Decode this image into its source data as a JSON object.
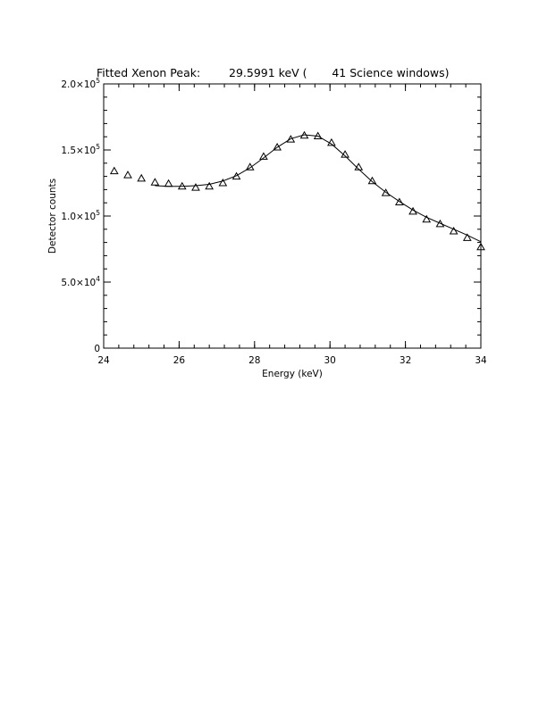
{
  "chart_data": {
    "type": "scatter",
    "title": "Fitted Xenon Peak:        29.5991 keV (       41 Science windows)",
    "xlabel": "Energy (keV)",
    "ylabel": "Detector counts",
    "xlim": [
      24,
      34
    ],
    "ylim": [
      0,
      200000
    ],
    "x_ticks": [
      24,
      26,
      28,
      30,
      32,
      34
    ],
    "x_tick_labels": [
      "24",
      "26",
      "28",
      "30",
      "32",
      "34"
    ],
    "y_ticks": [
      0,
      50000,
      100000,
      150000,
      200000
    ],
    "y_tick_labels": [
      {
        "mantissa": "0",
        "exp": ""
      },
      {
        "mantissa": "5.0×10",
        "exp": "4"
      },
      {
        "mantissa": "1.0×10",
        "exp": "5"
      },
      {
        "mantissa": "1.5×10",
        "exp": "5"
      },
      {
        "mantissa": "2.0×10",
        "exp": "5"
      }
    ],
    "grid": false,
    "series": [
      {
        "marker": "triangle",
        "x": [
          24.28,
          24.64,
          25.0,
          25.36,
          25.72,
          26.08,
          26.44,
          26.8,
          27.16,
          27.52,
          27.88,
          28.24,
          28.6,
          28.96,
          29.32,
          29.68,
          30.04,
          30.4,
          30.76,
          31.12,
          31.48,
          31.84,
          32.2,
          32.56,
          32.92,
          33.28,
          33.64,
          34.0
        ],
        "y": [
          134000,
          131000,
          128500,
          125500,
          124500,
          122500,
          121500,
          122500,
          125000,
          130000,
          137000,
          145000,
          152000,
          158000,
          161000,
          160500,
          155500,
          146500,
          137000,
          126500,
          117500,
          110500,
          103500,
          97500,
          94000,
          88500,
          83500,
          76500
        ]
      },
      {
        "style": "line",
        "x": [
          25.36,
          25.72,
          26.08,
          26.44,
          26.8,
          27.16,
          27.52,
          27.88,
          28.24,
          28.6,
          28.96,
          29.32,
          29.68,
          30.04,
          30.4,
          30.76,
          31.12,
          31.48,
          31.84,
          32.2,
          32.56,
          32.92,
          33.28,
          33.64,
          34.0
        ],
        "y": [
          123000,
          122500,
          122500,
          123000,
          124000,
          126500,
          130500,
          136500,
          144000,
          152000,
          158500,
          161500,
          160500,
          154500,
          145500,
          135500,
          126000,
          118000,
          111000,
          104500,
          99000,
          94500,
          90000,
          85500,
          80500
        ]
      }
    ]
  }
}
